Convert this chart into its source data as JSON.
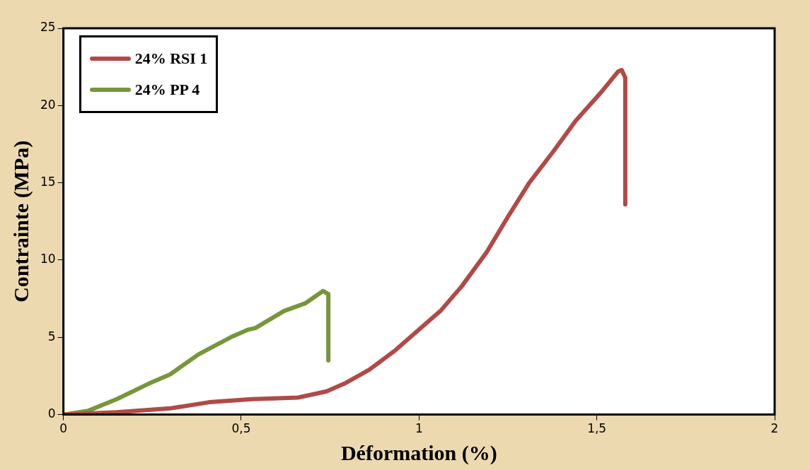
{
  "chart_data": {
    "type": "line",
    "xlabel": "Déformation (%)",
    "ylabel": "Contrainte (MPa)",
    "xlim": [
      0,
      2
    ],
    "xticks": [
      0,
      {
        "value": 0.5,
        "label": "0,5"
      },
      1,
      {
        "value": 1.5,
        "label": "1,5"
      },
      2
    ],
    "ylim": [
      0,
      25
    ],
    "yticks": [
      0,
      5,
      10,
      15,
      20,
      25
    ],
    "grid": false,
    "legend": "top left",
    "marker": "none",
    "line_style": "solid",
    "series": [
      {
        "name": "24% RSI 1",
        "color": "#b04a47",
        "x": [
          0,
          0.15,
          0.3,
          0.41,
          0.53,
          0.66,
          0.74,
          0.79,
          0.86,
          0.93,
          1.0,
          1.06,
          1.12,
          1.19,
          1.25,
          1.31,
          1.38,
          1.44,
          1.51,
          1.56,
          1.57,
          1.58,
          1.58
        ],
        "values": [
          0,
          0.15,
          0.4,
          0.8,
          1.0,
          1.1,
          1.5,
          2.0,
          2.9,
          4.1,
          5.5,
          6.7,
          8.3,
          10.5,
          12.8,
          15.0,
          17.1,
          19.0,
          20.8,
          22.2,
          22.3,
          21.8,
          13.6
        ]
      },
      {
        "name": "24% PP 4",
        "color": "#77963b",
        "x": [
          0,
          0.07,
          0.15,
          0.24,
          0.3,
          0.38,
          0.47,
          0.52,
          0.54,
          0.62,
          0.68,
          0.73,
          0.745,
          0.745
        ],
        "values": [
          0,
          0.25,
          1.0,
          2.0,
          2.6,
          3.9,
          5.0,
          5.5,
          5.6,
          6.7,
          7.2,
          8.0,
          7.8,
          3.5
        ]
      }
    ]
  }
}
